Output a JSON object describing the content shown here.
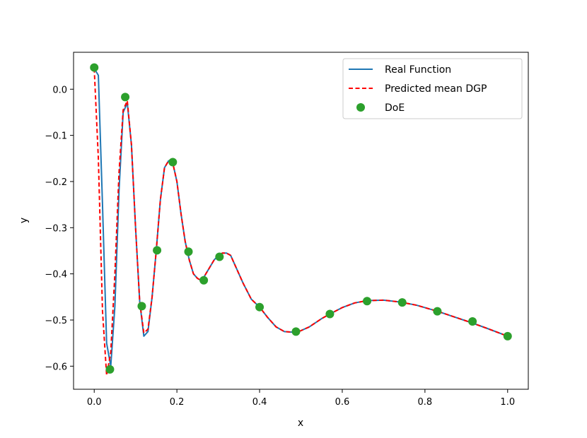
{
  "chart_data": {
    "type": "line",
    "xlabel": "x",
    "ylabel": "y",
    "xlim": [
      -0.05,
      1.05
    ],
    "ylim": [
      -0.65,
      0.08
    ],
    "x_ticks": [
      0.0,
      0.2,
      0.4,
      0.6,
      0.8,
      1.0
    ],
    "x_tick_labels": [
      "0.0",
      "0.2",
      "0.4",
      "0.6",
      "0.8",
      "1.0"
    ],
    "y_ticks": [
      0.0,
      -0.1,
      -0.2,
      -0.3,
      -0.4,
      -0.5,
      -0.6
    ],
    "y_tick_labels": [
      "0.0",
      "−0.1",
      "−0.2",
      "−0.3",
      "−0.4",
      "−0.5",
      "−0.6"
    ],
    "grid": false,
    "legend_position": "top-right",
    "legend": [
      {
        "label": "Real Function",
        "style": "solid-line",
        "color": "#1f77b4"
      },
      {
        "label": "Predicted mean DGP",
        "style": "dashed-line",
        "color": "#ff0000"
      },
      {
        "label": "DoE",
        "style": "marker",
        "color": "#2ca02c"
      }
    ],
    "series": [
      {
        "name": "Real Function",
        "color": "#1f77b4",
        "style": "solid",
        "points": [
          [
            0.0,
            0.045
          ],
          [
            0.01,
            0.03
          ],
          [
            0.02,
            -0.25
          ],
          [
            0.03,
            -0.55
          ],
          [
            0.04,
            -0.6
          ],
          [
            0.05,
            -0.47
          ],
          [
            0.06,
            -0.22
          ],
          [
            0.07,
            -0.05
          ],
          [
            0.08,
            -0.03
          ],
          [
            0.09,
            -0.12
          ],
          [
            0.1,
            -0.3
          ],
          [
            0.11,
            -0.46
          ],
          [
            0.12,
            -0.535
          ],
          [
            0.13,
            -0.525
          ],
          [
            0.14,
            -0.45
          ],
          [
            0.15,
            -0.35
          ],
          [
            0.16,
            -0.24
          ],
          [
            0.17,
            -0.17
          ],
          [
            0.18,
            -0.155
          ],
          [
            0.19,
            -0.16
          ],
          [
            0.2,
            -0.2
          ],
          [
            0.21,
            -0.27
          ],
          [
            0.22,
            -0.33
          ],
          [
            0.23,
            -0.37
          ],
          [
            0.24,
            -0.4
          ],
          [
            0.25,
            -0.41
          ],
          [
            0.26,
            -0.415
          ],
          [
            0.27,
            -0.4
          ],
          [
            0.28,
            -0.385
          ],
          [
            0.29,
            -0.37
          ],
          [
            0.3,
            -0.36
          ],
          [
            0.31,
            -0.355
          ],
          [
            0.32,
            -0.355
          ],
          [
            0.33,
            -0.36
          ],
          [
            0.34,
            -0.38
          ],
          [
            0.36,
            -0.42
          ],
          [
            0.38,
            -0.455
          ],
          [
            0.4,
            -0.472
          ],
          [
            0.42,
            -0.495
          ],
          [
            0.44,
            -0.515
          ],
          [
            0.46,
            -0.525
          ],
          [
            0.49,
            -0.527
          ],
          [
            0.52,
            -0.515
          ],
          [
            0.55,
            -0.497
          ],
          [
            0.57,
            -0.487
          ],
          [
            0.6,
            -0.473
          ],
          [
            0.63,
            -0.463
          ],
          [
            0.66,
            -0.458
          ],
          [
            0.7,
            -0.457
          ],
          [
            0.74,
            -0.461
          ],
          [
            0.78,
            -0.468
          ],
          [
            0.83,
            -0.481
          ],
          [
            0.87,
            -0.493
          ],
          [
            0.91,
            -0.505
          ],
          [
            0.95,
            -0.518
          ],
          [
            1.0,
            -0.535
          ]
        ]
      },
      {
        "name": "Predicted mean DGP",
        "color": "#ff0000",
        "style": "dashed",
        "points": [
          [
            0.0,
            0.045
          ],
          [
            0.01,
            -0.15
          ],
          [
            0.02,
            -0.48
          ],
          [
            0.03,
            -0.62
          ],
          [
            0.04,
            -0.57
          ],
          [
            0.05,
            -0.4
          ],
          [
            0.06,
            -0.18
          ],
          [
            0.07,
            -0.045
          ],
          [
            0.08,
            -0.025
          ],
          [
            0.09,
            -0.12
          ],
          [
            0.1,
            -0.3
          ],
          [
            0.11,
            -0.46
          ],
          [
            0.12,
            -0.528
          ],
          [
            0.13,
            -0.52
          ],
          [
            0.14,
            -0.45
          ],
          [
            0.15,
            -0.35
          ],
          [
            0.16,
            -0.24
          ],
          [
            0.17,
            -0.17
          ],
          [
            0.18,
            -0.155
          ],
          [
            0.19,
            -0.16
          ],
          [
            0.2,
            -0.2
          ],
          [
            0.21,
            -0.27
          ],
          [
            0.22,
            -0.33
          ],
          [
            0.23,
            -0.37
          ],
          [
            0.24,
            -0.4
          ],
          [
            0.25,
            -0.41
          ],
          [
            0.26,
            -0.415
          ],
          [
            0.27,
            -0.4
          ],
          [
            0.28,
            -0.385
          ],
          [
            0.29,
            -0.37
          ],
          [
            0.3,
            -0.36
          ],
          [
            0.31,
            -0.355
          ],
          [
            0.32,
            -0.355
          ],
          [
            0.33,
            -0.36
          ],
          [
            0.34,
            -0.38
          ],
          [
            0.36,
            -0.42
          ],
          [
            0.38,
            -0.455
          ],
          [
            0.4,
            -0.472
          ],
          [
            0.42,
            -0.495
          ],
          [
            0.44,
            -0.515
          ],
          [
            0.46,
            -0.525
          ],
          [
            0.49,
            -0.527
          ],
          [
            0.52,
            -0.515
          ],
          [
            0.55,
            -0.497
          ],
          [
            0.57,
            -0.487
          ],
          [
            0.6,
            -0.473
          ],
          [
            0.63,
            -0.463
          ],
          [
            0.66,
            -0.458
          ],
          [
            0.7,
            -0.457
          ],
          [
            0.74,
            -0.461
          ],
          [
            0.78,
            -0.468
          ],
          [
            0.83,
            -0.481
          ],
          [
            0.87,
            -0.493
          ],
          [
            0.91,
            -0.505
          ],
          [
            0.95,
            -0.518
          ],
          [
            1.0,
            -0.535
          ]
        ]
      },
      {
        "name": "DoE",
        "color": "#2ca02c",
        "style": "markers",
        "points": [
          [
            0.0,
            0.047
          ],
          [
            0.038,
            -0.607
          ],
          [
            0.075,
            -0.017
          ],
          [
            0.115,
            -0.47
          ],
          [
            0.152,
            -0.349
          ],
          [
            0.19,
            -0.158
          ],
          [
            0.228,
            -0.352
          ],
          [
            0.265,
            -0.414
          ],
          [
            0.303,
            -0.363
          ],
          [
            0.4,
            -0.472
          ],
          [
            0.488,
            -0.525
          ],
          [
            0.57,
            -0.487
          ],
          [
            0.66,
            -0.459
          ],
          [
            0.745,
            -0.462
          ],
          [
            0.83,
            -0.481
          ],
          [
            0.915,
            -0.503
          ],
          [
            1.0,
            -0.535
          ]
        ]
      }
    ]
  }
}
